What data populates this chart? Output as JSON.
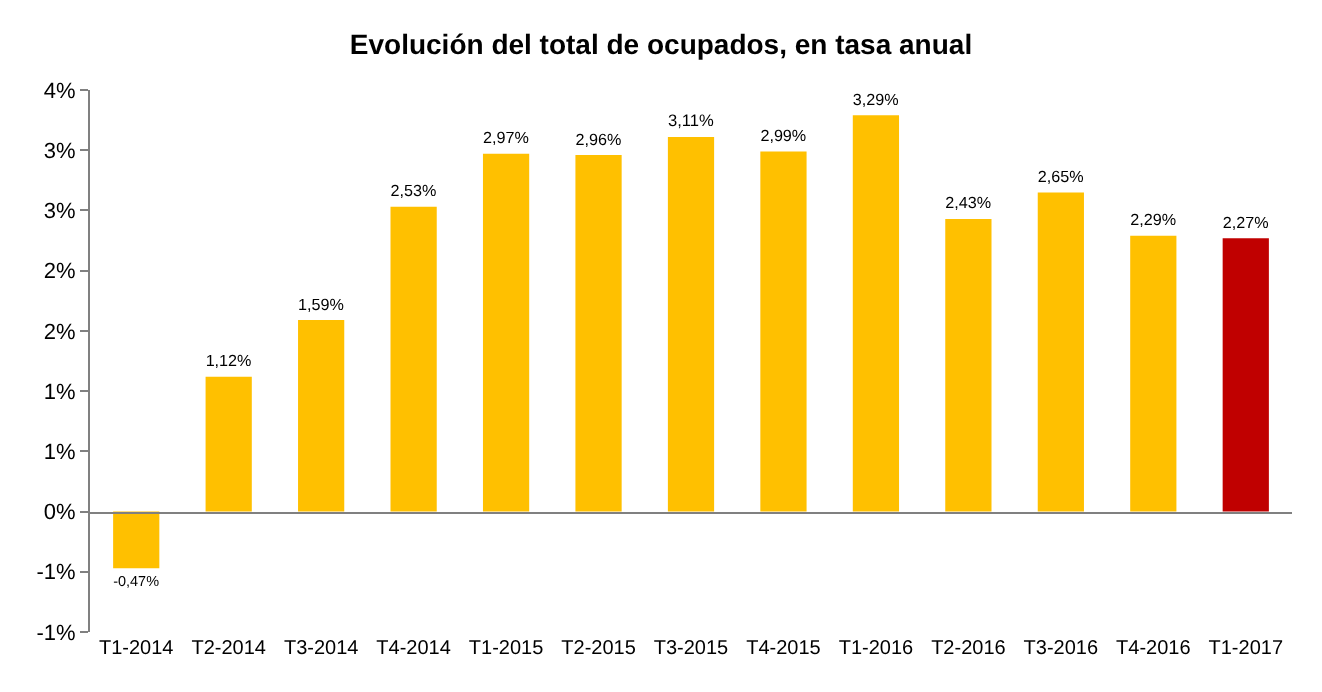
{
  "chart_data": {
    "type": "bar",
    "title": "Evolución del total de ocupados, en tasa anual",
    "categories": [
      "T1-2014",
      "T2-2014",
      "T3-2014",
      "T4-2014",
      "T1-2015",
      "T2-2015",
      "T3-2015",
      "T4-2015",
      "T1-2016",
      "T2-2016",
      "T3-2016",
      "T4-2016",
      "T1-2017"
    ],
    "values": [
      -0.47,
      1.12,
      1.59,
      2.53,
      2.97,
      2.96,
      3.11,
      2.99,
      3.29,
      2.43,
      2.65,
      2.29,
      2.27
    ],
    "value_labels": [
      "-0,47%",
      "1,12%",
      "1,59%",
      "2,53%",
      "2,97%",
      "2,96%",
      "3,11%",
      "2,99%",
      "3,29%",
      "2,43%",
      "2,65%",
      "2,29%",
      "2,27%"
    ],
    "colors": [
      "#ffc000",
      "#ffc000",
      "#ffc000",
      "#ffc000",
      "#ffc000",
      "#ffc000",
      "#ffc000",
      "#ffc000",
      "#ffc000",
      "#ffc000",
      "#ffc000",
      "#ffc000",
      "#c00000"
    ],
    "ylim": [
      -1,
      3.5
    ],
    "yticks": [
      {
        "value": -1,
        "label": "-1%"
      },
      {
        "value": -0.5,
        "label": "-1%"
      },
      {
        "value": 0,
        "label": "0%"
      },
      {
        "value": 0.5,
        "label": "1%"
      },
      {
        "value": 1,
        "label": "1%"
      },
      {
        "value": 1.5,
        "label": "2%"
      },
      {
        "value": 2,
        "label": "2%"
      },
      {
        "value": 2.5,
        "label": "3%"
      },
      {
        "value": 3,
        "label": "3%"
      },
      {
        "value": 3.5,
        "label": "4%"
      }
    ],
    "legend": false
  }
}
